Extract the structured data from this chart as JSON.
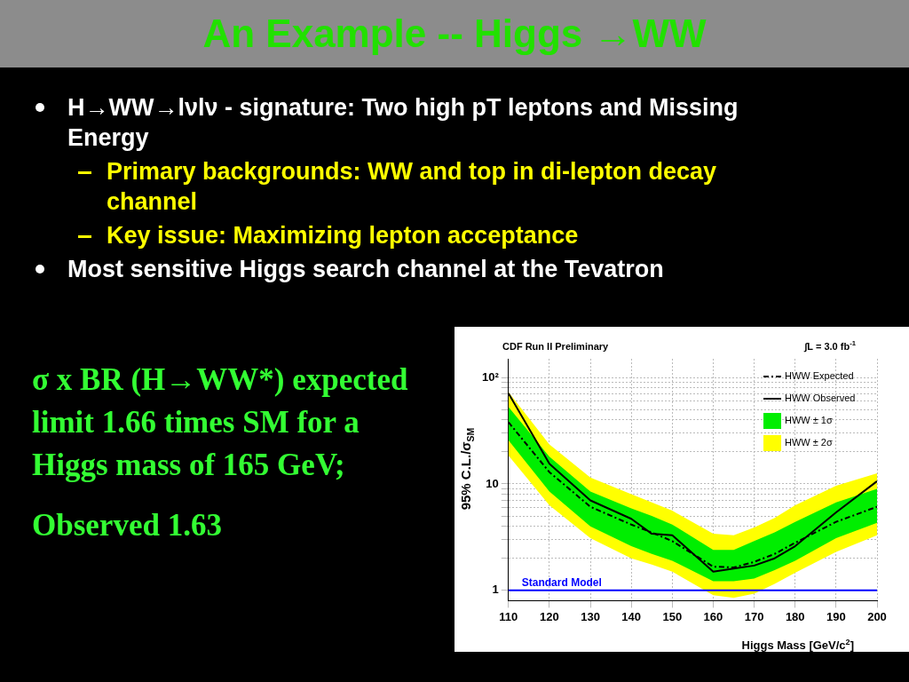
{
  "chart_data": {
    "type": "line",
    "title": "An Example -- Higgs →WW",
    "xlabel": "Higgs Mass [GeV/c$^{2}$]",
    "ylabel": "95% C.L./σ$_{SM}$",
    "annotations": [
      "H→WW→lνlν - signature: Two high pT leptons and Missing Energy",
      "Primary backgrounds: WW and top in di-lepton decay channel",
      "Key issue: Maximizing lepton acceptance",
      "Most sensitive Higgs search channel at the Tevatron",
      "σ x BR (H→WW*) expected limit 1.66 times SM for  a Higgs mass of 165 GeV;",
      "Observed 1.63",
      "CDF Run II Preliminary",
      "∫L = 3.0 fb$^{-1}$"
    ],
    "x": [
      110,
      120,
      130,
      140,
      145,
      150,
      160,
      165,
      170,
      175,
      180,
      190,
      200
    ],
    "series": [
      {
        "name": "HWW ± 2σ",
        "type": "line",
        "color": "#ffff00",
        "line_style": "dashed",
        "values": [
          null,
          null,
          null,
          null,
          null,
          null,
          null,
          null,
          null,
          null,
          null,
          null,
          null
        ],
        "lower": [
          18.5,
          6.3,
          3.1,
          2.0,
          1.75,
          1.5,
          0.9,
          0.85,
          0.93,
          1.15,
          1.46,
          2.3,
          3.3
        ],
        "upper": [
          73,
          23.5,
          11.5,
          8.0,
          6.7,
          5.6,
          3.4,
          3.3,
          3.9,
          4.8,
          6.3,
          9.6,
          12.6
        ]
      },
      {
        "name": "HWW ± 1σ",
        "type": "line",
        "color": "#00ee00",
        "line_style": "dashed",
        "values": [
          null,
          null,
          null,
          null,
          null,
          null,
          null,
          null,
          null,
          null,
          null,
          null,
          null
        ],
        "lower": [
          25.7,
          8.5,
          4.0,
          2.6,
          2.2,
          1.9,
          1.22,
          1.22,
          1.29,
          1.55,
          1.9,
          3.1,
          4.3
        ],
        "upper": [
          53,
          18,
          8.5,
          5.9,
          5.0,
          4.15,
          2.4,
          2.4,
          2.9,
          3.5,
          4.4,
          6.7,
          9.0
        ]
      },
      {
        "name": "HWW Expected",
        "type": "line",
        "color": "#000000",
        "line_style": "dashed",
        "values": [
          38,
          12.9,
          6.1,
          4.15,
          3.5,
          2.9,
          1.67,
          1.64,
          1.85,
          2.2,
          2.8,
          4.4,
          6.1
        ]
      },
      {
        "name": "HWW Observed",
        "type": "line",
        "color": "#000000",
        "line_style": "solid",
        "values": [
          71,
          15.5,
          7.0,
          4.7,
          3.4,
          3.3,
          1.5,
          1.6,
          1.71,
          2.0,
          2.6,
          5.4,
          10.6
        ]
      }
    ],
    "log": "y",
    "ylim": [
      0.8,
      150
    ],
    "yticks": [
      {
        "value": 1,
        "label": "1"
      },
      {
        "value": 2,
        "label": null
      },
      {
        "value": 3,
        "label": null
      },
      {
        "value": 4,
        "label": null
      },
      {
        "value": 5,
        "label": null
      },
      {
        "value": 6,
        "label": null
      },
      {
        "value": 7,
        "label": null
      },
      {
        "value": 8,
        "label": null
      },
      {
        "value": 9,
        "label": null
      },
      {
        "value": 10,
        "label": "10"
      },
      {
        "value": 20,
        "label": null
      },
      {
        "value": 30,
        "label": null
      },
      {
        "value": 40,
        "label": null
      },
      {
        "value": 50,
        "label": null
      },
      {
        "value": 60,
        "label": null
      },
      {
        "value": 70,
        "label": null
      },
      {
        "value": 80,
        "label": null
      },
      {
        "value": 90,
        "label": null
      },
      {
        "value": 100,
        "label": "10²"
      }
    ],
    "xlim": [
      110,
      200
    ],
    "xticks": [
      110,
      120,
      130,
      140,
      150,
      160,
      170,
      180,
      190,
      200
    ],
    "grid": true,
    "legend": "top right",
    "ref_lines": [
      {
        "axis": "y",
        "value": 1,
        "label": "Standard Model",
        "color": "#0000ff"
      }
    ]
  }
}
